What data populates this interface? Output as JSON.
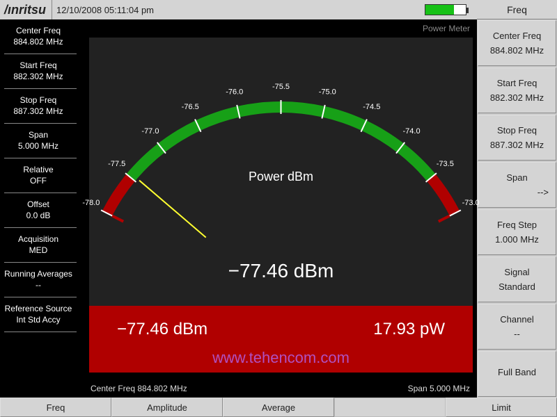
{
  "header": {
    "logo": "/ınritsu",
    "datetime": "12/10/2008 05:11:04 pm",
    "battery_pct": 70
  },
  "left_items": [
    {
      "label": "Center Freq",
      "value": "884.802 MHz"
    },
    {
      "label": "Start Freq",
      "value": "882.302 MHz"
    },
    {
      "label": "Stop Freq",
      "value": "887.302 MHz"
    },
    {
      "label": "Span",
      "value": "5.000 MHz"
    },
    {
      "label": "Relative",
      "value": "OFF"
    },
    {
      "label": "Offset",
      "value": "0.0 dB"
    },
    {
      "label": "Acquisition",
      "value": "MED"
    },
    {
      "label": "Running Averages",
      "value": "--"
    },
    {
      "label": "Reference Source",
      "value": "Int Std Accy"
    }
  ],
  "right": {
    "header": "Freq",
    "keys": [
      {
        "label": "Center Freq",
        "value": "884.802 MHz"
      },
      {
        "label": "Start Freq",
        "value": "882.302 MHz"
      },
      {
        "label": "Stop Freq",
        "value": "887.302 MHz"
      },
      {
        "label": "Span",
        "value": "-->",
        "arrow": true
      },
      {
        "label": "Freq Step",
        "value": "1.000 MHz"
      },
      {
        "label": "Signal",
        "value": "Standard"
      },
      {
        "label": "Channel",
        "value": "--"
      },
      {
        "label": "Full Band",
        "value": ""
      }
    ]
  },
  "bottom": [
    "Freq",
    "Amplitude",
    "Average",
    "",
    "Limit"
  ],
  "meter": {
    "panel_title": "Power Meter",
    "unit_label": "Power dBm",
    "big_value": "−77.46 dBm",
    "dbm_value": "−77.46 dBm",
    "watt_value": "17.93 pW",
    "watermark": "www.tehencom.com",
    "status_left": "Center Freq 884.802 MHz",
    "status_right": "Span 5.000 MHz",
    "scale_min": -78.0,
    "scale_max": -73.0,
    "green_min": -77.5,
    "green_max": -73.5,
    "needle_value": -77.46,
    "tick_step": 0.5,
    "colors": {
      "panel_bg": "#222222",
      "red_zone": "#b00000",
      "green_zone": "#17a017",
      "needle": "#ffff30",
      "tick_text": "#ffffff",
      "red_strip": "#b00000",
      "watermark": "#b050c0"
    }
  }
}
